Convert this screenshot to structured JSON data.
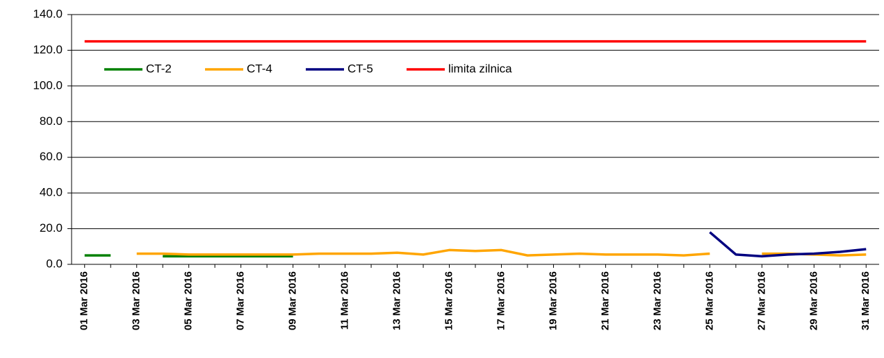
{
  "chart_data": {
    "type": "line",
    "categories": [
      "01 Mar 2016",
      null,
      "03 Mar 2016",
      null,
      "05 Mar 2016",
      null,
      "07 Mar 2016",
      null,
      "09 Mar 2016",
      null,
      "11 Mar 2016",
      null,
      "13 Mar 2016",
      null,
      "15 Mar 2016",
      null,
      "17 Mar 2016",
      null,
      "19 Mar 2016",
      null,
      "21 Mar 2016",
      null,
      "23 Mar 2016",
      null,
      "25 Mar 2016",
      null,
      "27 Mar 2016",
      null,
      "29 Mar 2016",
      null,
      "31 Mar 2016"
    ],
    "series": [
      {
        "name": "CT-2",
        "color": "#008000",
        "values": [
          5,
          5,
          null,
          4.5,
          4.5,
          4.5,
          4.5,
          4.5,
          4.5,
          null,
          null,
          null,
          null,
          null,
          null,
          null,
          null,
          null,
          null,
          null,
          null,
          null,
          null,
          null,
          null,
          null,
          null,
          null,
          null,
          null,
          null
        ]
      },
      {
        "name": "CT-4",
        "color": "#ffa500",
        "values": [
          null,
          null,
          6,
          6,
          5.5,
          5.5,
          5.5,
          5.5,
          5.5,
          6,
          6,
          6,
          6.5,
          5.5,
          8,
          7.5,
          8,
          5,
          5.5,
          6,
          5.5,
          5.5,
          5.5,
          5,
          6,
          null,
          6,
          6,
          5.5,
          5,
          5.5
        ]
      },
      {
        "name": "CT-5",
        "color": "#000080",
        "values": [
          null,
          null,
          null,
          null,
          null,
          null,
          null,
          null,
          null,
          null,
          null,
          null,
          null,
          null,
          null,
          null,
          null,
          null,
          null,
          null,
          null,
          null,
          null,
          null,
          18,
          5.5,
          4.5,
          5.5,
          6,
          7,
          8.5
        ]
      },
      {
        "name": "limita zilnica",
        "color": "#ff0000",
        "values": [
          125,
          125,
          125,
          125,
          125,
          125,
          125,
          125,
          125,
          125,
          125,
          125,
          125,
          125,
          125,
          125,
          125,
          125,
          125,
          125,
          125,
          125,
          125,
          125,
          125,
          125,
          125,
          125,
          125,
          125,
          125
        ]
      }
    ],
    "ylim": [
      0,
      140
    ],
    "yticks": [
      {
        "value": 0,
        "label": "0.0"
      },
      {
        "value": 20,
        "label": "20.0"
      },
      {
        "value": 40,
        "label": "40.0"
      },
      {
        "value": 60,
        "label": "60.0"
      },
      {
        "value": 80,
        "label": "80.0"
      },
      {
        "value": 100,
        "label": "100.0"
      },
      {
        "value": 120,
        "label": "120.0"
      },
      {
        "value": 140,
        "label": "140.0"
      }
    ],
    "grid": true,
    "legend": "upper left"
  }
}
